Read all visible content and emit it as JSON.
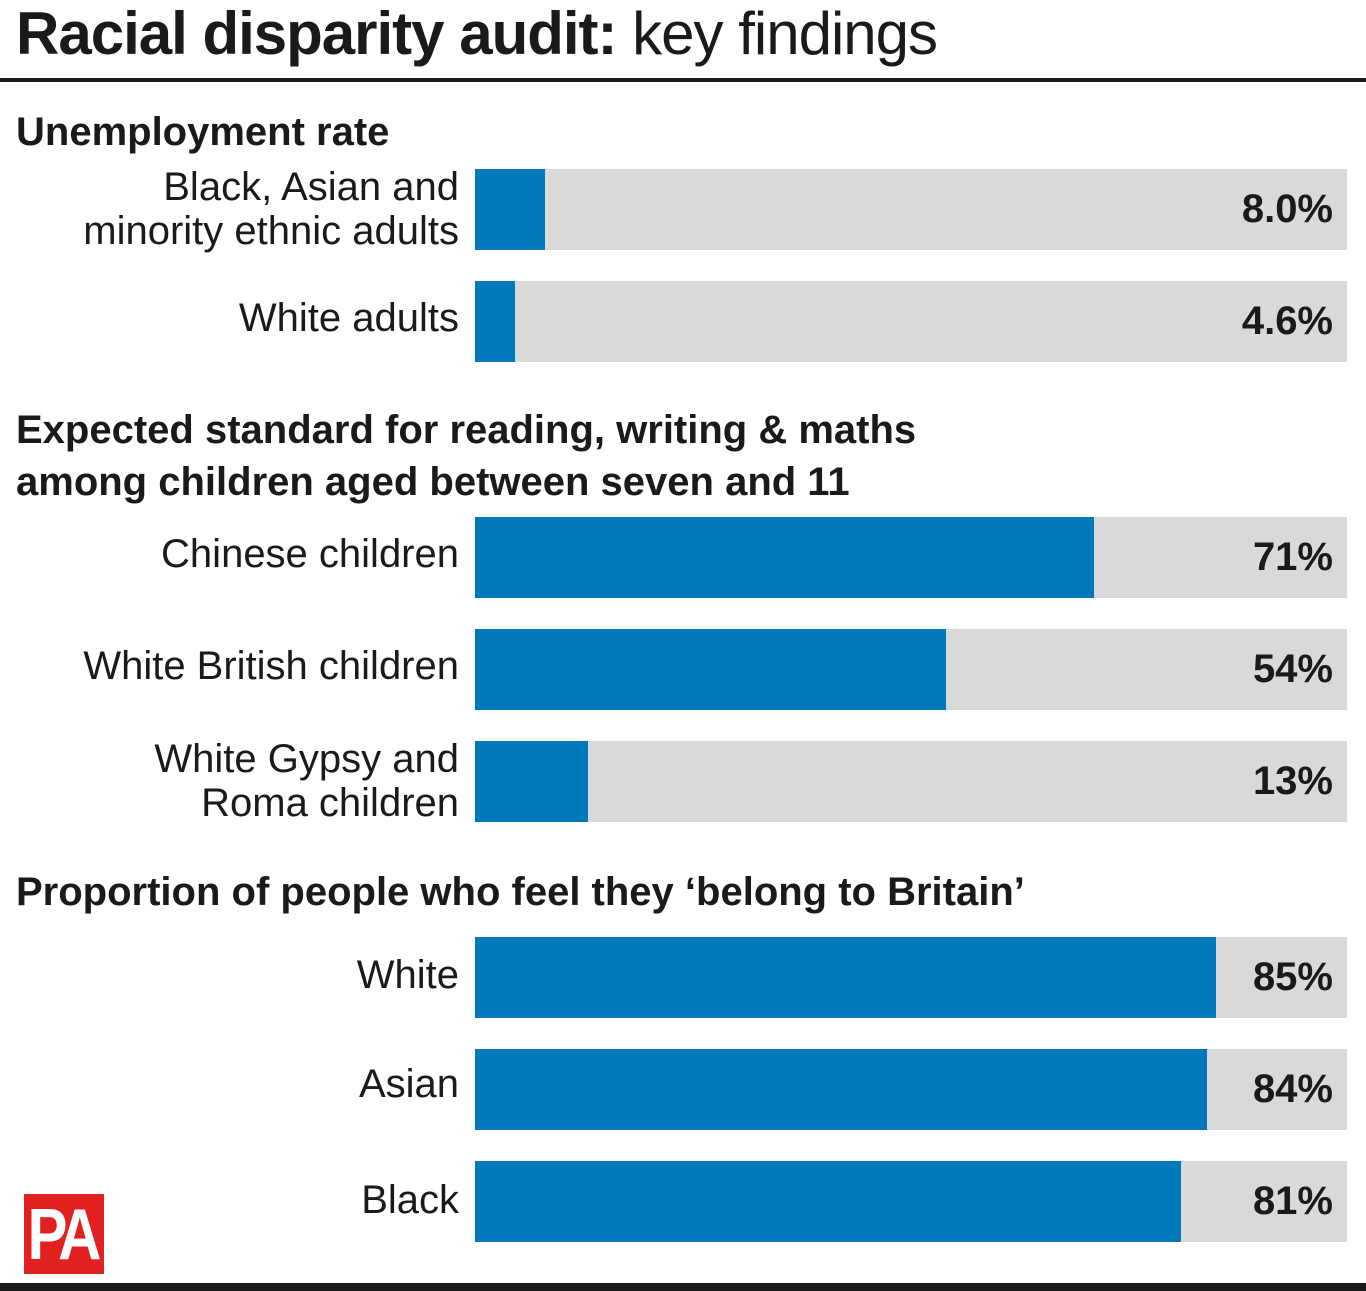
{
  "header": {
    "title_bold": "Racial disparity audit:",
    "title_light": "key findings"
  },
  "chart_data": [
    {
      "type": "bar",
      "title": "Unemployment rate",
      "categories": [
        "Black, Asian and minority ethnic adults",
        "White adults"
      ],
      "values": [
        8.0,
        4.6
      ],
      "value_labels": [
        "8.0%",
        "4.6%"
      ],
      "unit": "%",
      "ylim": [
        0,
        100
      ]
    },
    {
      "type": "bar",
      "title": "Expected standard for reading, writing & maths among children aged between seven and 11",
      "categories": [
        "Chinese children",
        "White British children",
        "White Gypsy and Roma children"
      ],
      "values": [
        71,
        54,
        13
      ],
      "value_labels": [
        "71%",
        "54%",
        "13%"
      ],
      "unit": "%",
      "ylim": [
        0,
        100
      ]
    },
    {
      "type": "bar",
      "title": "Proportion of people who feel they ‘belong to Britain’",
      "categories": [
        "White",
        "Asian",
        "Black"
      ],
      "values": [
        85,
        84,
        81
      ],
      "value_labels": [
        "85%",
        "84%",
        "81%"
      ],
      "unit": "%",
      "ylim": [
        0,
        100
      ]
    }
  ],
  "sections": [
    {
      "title_lines": [
        "Unemployment rate"
      ],
      "rows": [
        {
          "label_lines": [
            "Black, Asian and",
            "minority ethnic adults"
          ],
          "value": 8.0,
          "value_label": "8.0%"
        },
        {
          "label_lines": [
            "White adults"
          ],
          "value": 4.6,
          "value_label": "4.6%"
        }
      ]
    },
    {
      "title_lines": [
        "Expected standard for reading, writing & maths",
        "among children aged between seven and 11"
      ],
      "rows": [
        {
          "label_lines": [
            "Chinese children"
          ],
          "value": 71,
          "value_label": "71%"
        },
        {
          "label_lines": [
            "White British children"
          ],
          "value": 54,
          "value_label": "54%"
        },
        {
          "label_lines": [
            "White Gypsy and",
            "Roma children"
          ],
          "value": 13,
          "value_label": "13%"
        }
      ]
    },
    {
      "title_lines": [
        "Proportion of people who feel they ‘belong to Britain’"
      ],
      "rows": [
        {
          "label_lines": [
            "White"
          ],
          "value": 85,
          "value_label": "85%"
        },
        {
          "label_lines": [
            "Asian"
          ],
          "value": 84,
          "value_label": "84%"
        },
        {
          "label_lines": [
            "Black"
          ],
          "value": 81,
          "value_label": "81%"
        }
      ]
    }
  ],
  "colors": {
    "bar_fill": "#0079bb",
    "bar_track": "#d9d9d9",
    "text": "#1a1a1a",
    "logo_bg": "#e0211f"
  },
  "logo": {
    "text": "PA"
  }
}
